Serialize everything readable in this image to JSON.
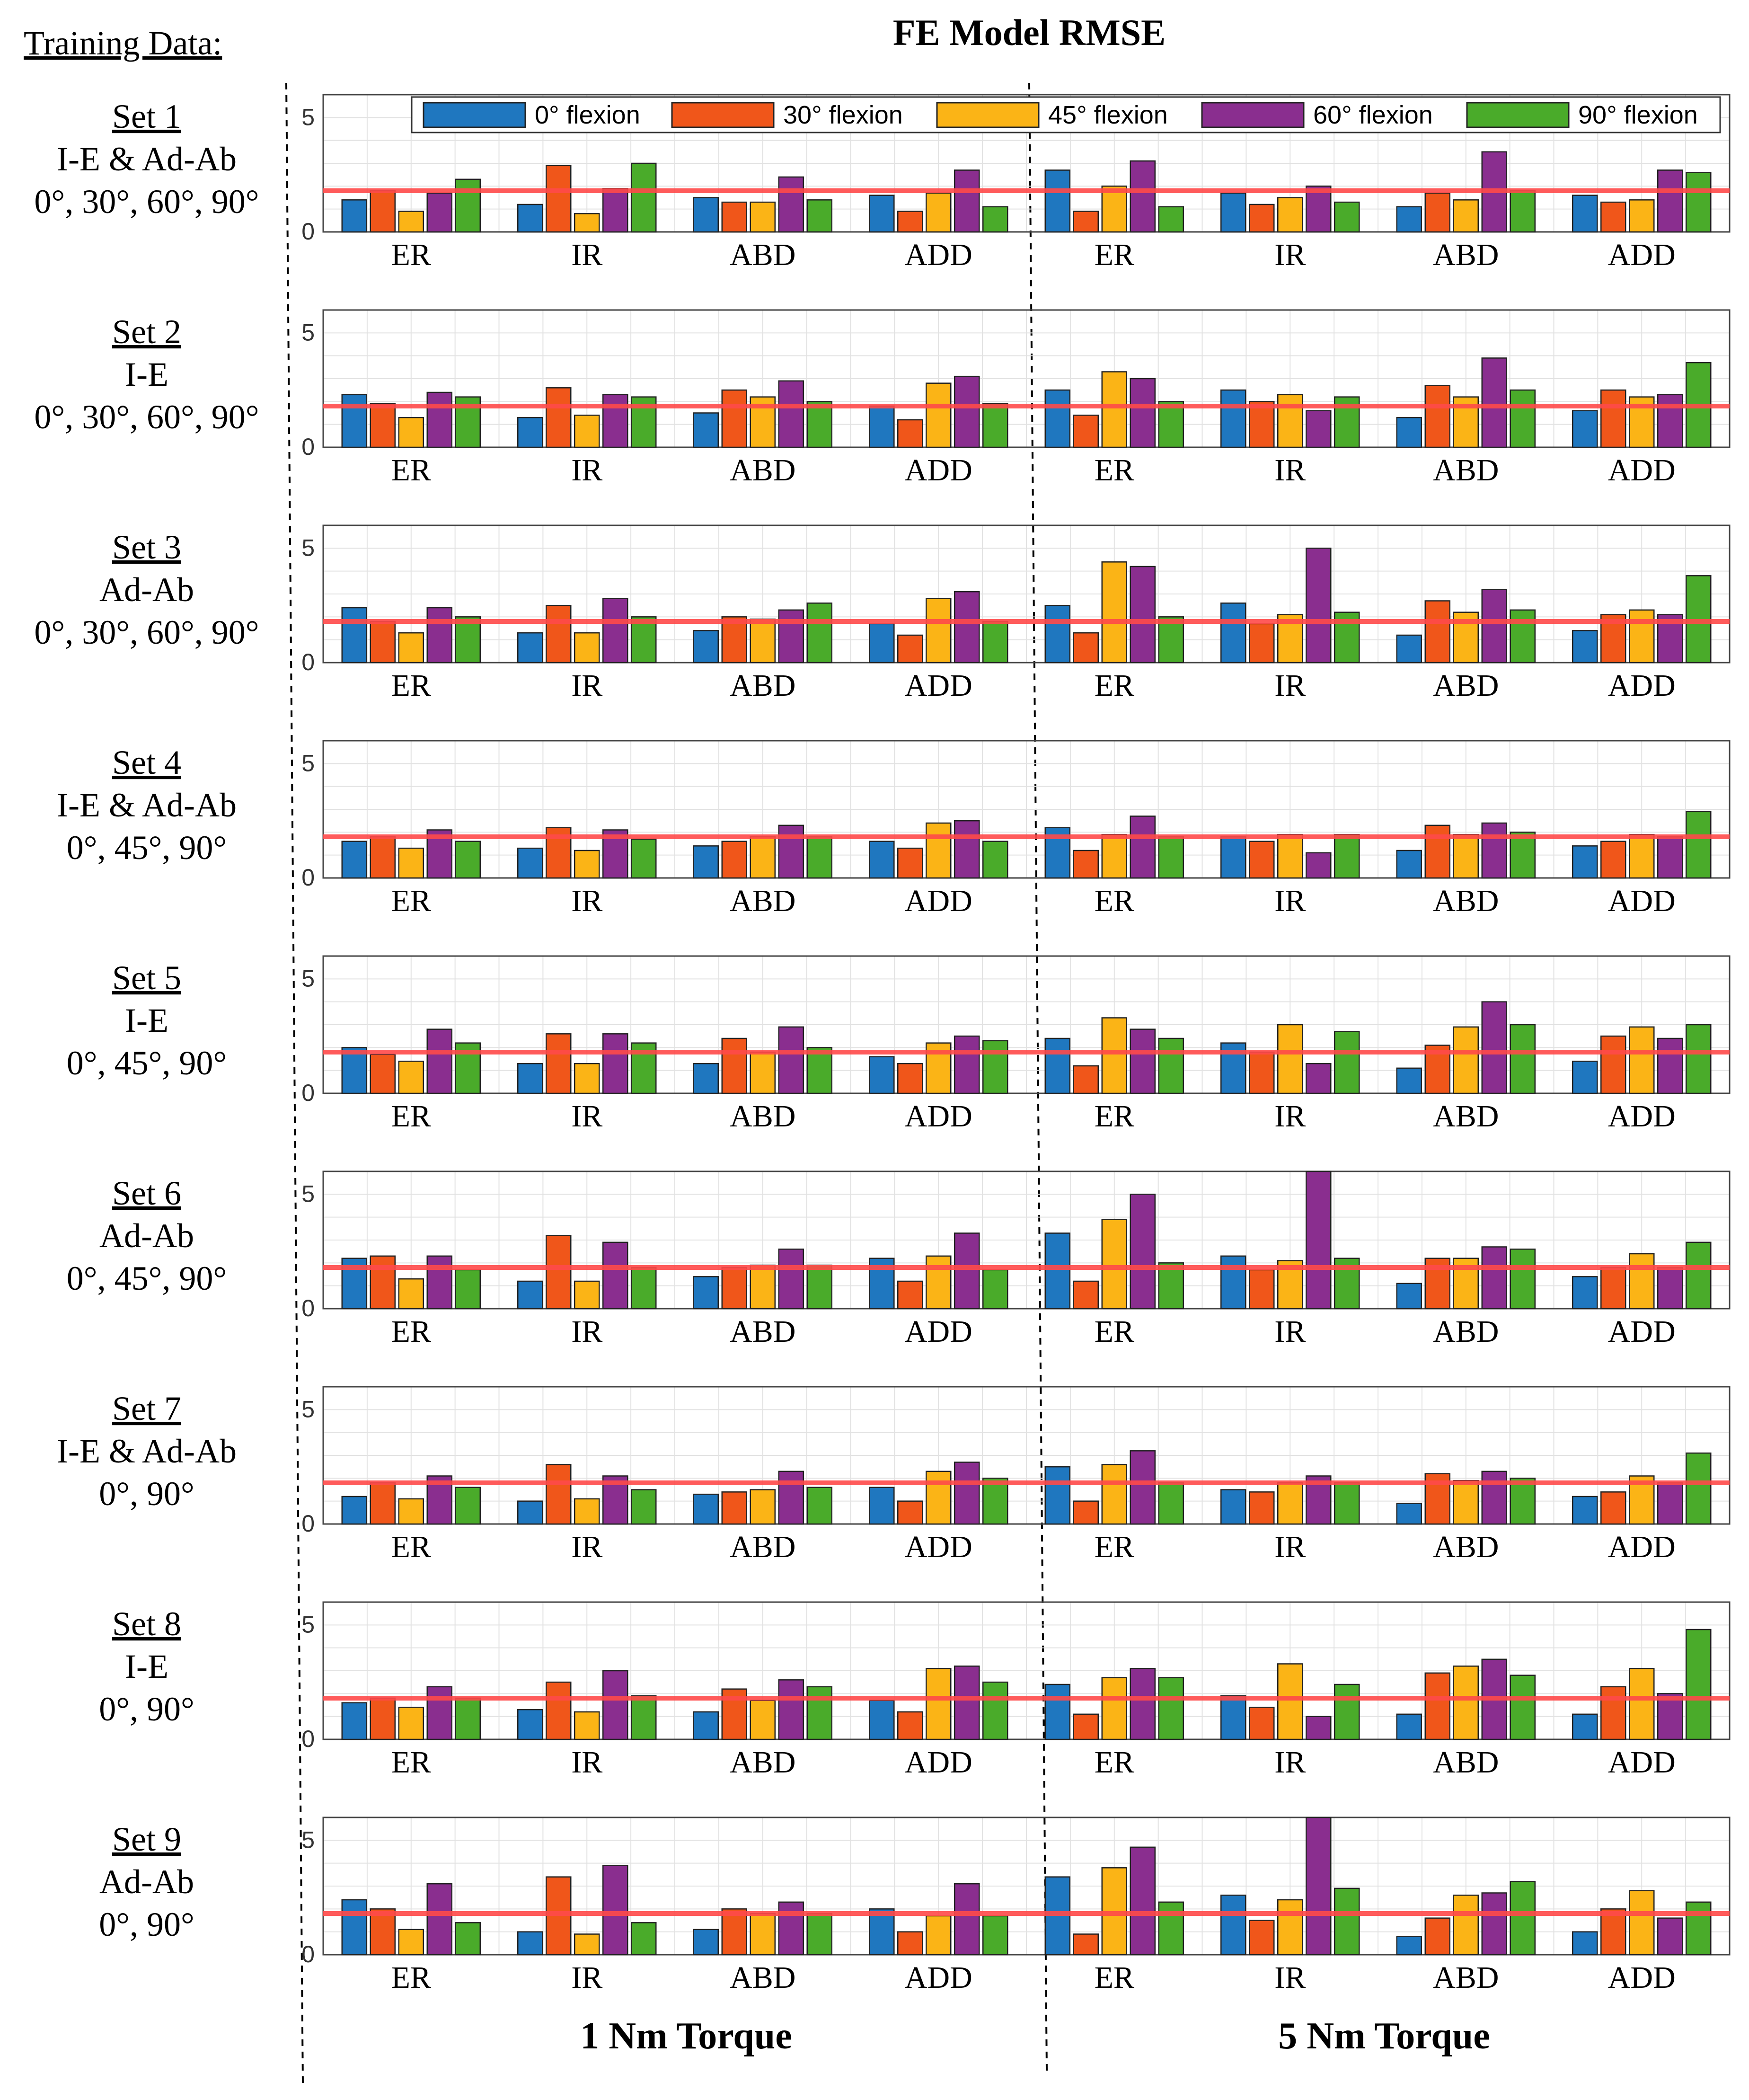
{
  "figure": {
    "title": "FE Model RMSE",
    "training_header": "Training Data:",
    "torque_labels": [
      "1 Nm Torque",
      "5 Nm Torque"
    ],
    "legend": [
      {
        "label": "0° flexion",
        "color": "#1f77bf"
      },
      {
        "label": "30° flexion",
        "color": "#f0561a"
      },
      {
        "label": "45° flexion",
        "color": "#fbb416"
      },
      {
        "label": "60° flexion",
        "color": "#8a2e8f"
      },
      {
        "label": "90° flexion",
        "color": "#4aab2a"
      }
    ],
    "reference_line": {
      "value": 1.8,
      "color": "#ff4a4a"
    },
    "y_ticks": [
      0,
      5
    ],
    "ylim": [
      0,
      6
    ]
  },
  "chart_data": {
    "type": "bar",
    "title": "FE Model RMSE",
    "categories": [
      "ER",
      "IR",
      "ABD",
      "ADD",
      "ER",
      "IR",
      "ABD",
      "ADD"
    ],
    "groups": [
      "1 Nm Torque",
      "1 Nm Torque",
      "1 Nm Torque",
      "1 Nm Torque",
      "5 Nm Torque",
      "5 Nm Torque",
      "5 Nm Torque",
      "5 Nm Torque"
    ],
    "series_names": [
      "0° flexion",
      "30° flexion",
      "45° flexion",
      "60° flexion",
      "90° flexion"
    ],
    "ylim": [
      0,
      6
    ],
    "reference_value": 1.8,
    "grid": true,
    "legend_position": "top-right",
    "panels": [
      {
        "label": {
          "set": "Set 1",
          "type": "I-E & Ad-Ab",
          "angles": "0°, 30°, 60°, 90°"
        },
        "values": [
          [
            1.4,
            1.8,
            0.9,
            1.7,
            2.3
          ],
          [
            1.2,
            2.9,
            0.8,
            1.9,
            3.0
          ],
          [
            1.5,
            1.3,
            1.3,
            2.4,
            1.4
          ],
          [
            1.6,
            0.9,
            1.7,
            2.7,
            1.1
          ],
          [
            2.7,
            0.9,
            2.0,
            3.1,
            1.1
          ],
          [
            1.7,
            1.2,
            1.5,
            2.0,
            1.3
          ],
          [
            1.1,
            1.7,
            1.4,
            3.5,
            1.8
          ],
          [
            1.6,
            1.3,
            1.4,
            2.7,
            2.6
          ]
        ]
      },
      {
        "label": {
          "set": "Set 2",
          "type": "I-E",
          "angles": "0°, 30°, 60°, 90°"
        },
        "values": [
          [
            2.3,
            1.9,
            1.3,
            2.4,
            2.2
          ],
          [
            1.3,
            2.6,
            1.4,
            2.3,
            2.2
          ],
          [
            1.5,
            2.5,
            2.2,
            2.9,
            2.0
          ],
          [
            1.8,
            1.2,
            2.8,
            3.1,
            1.9
          ],
          [
            2.5,
            1.4,
            3.3,
            3.0,
            2.0
          ],
          [
            2.5,
            2.0,
            2.3,
            1.6,
            2.2
          ],
          [
            1.3,
            2.7,
            2.2,
            3.9,
            2.5
          ],
          [
            1.6,
            2.5,
            2.2,
            2.3,
            3.7
          ]
        ]
      },
      {
        "label": {
          "set": "Set 3",
          "type": "Ad-Ab",
          "angles": "0°, 30°, 60°, 90°"
        },
        "values": [
          [
            2.4,
            1.8,
            1.3,
            2.4,
            2.0
          ],
          [
            1.3,
            2.5,
            1.3,
            2.8,
            2.0
          ],
          [
            1.4,
            2.0,
            1.9,
            2.3,
            2.6
          ],
          [
            1.7,
            1.2,
            2.8,
            3.1,
            1.8
          ],
          [
            2.5,
            1.3,
            4.4,
            4.2,
            2.0
          ],
          [
            2.6,
            1.7,
            2.1,
            5.0,
            2.2
          ],
          [
            1.2,
            2.7,
            2.2,
            3.2,
            2.3
          ],
          [
            1.4,
            2.1,
            2.3,
            2.1,
            3.8
          ]
        ]
      },
      {
        "label": {
          "set": "Set 4",
          "type": "I-E & Ad-Ab",
          "angles": "0°, 45°, 90°"
        },
        "values": [
          [
            1.6,
            1.8,
            1.3,
            2.1,
            1.6
          ],
          [
            1.3,
            2.2,
            1.2,
            2.1,
            1.7
          ],
          [
            1.4,
            1.6,
            1.8,
            2.3,
            1.8
          ],
          [
            1.6,
            1.3,
            2.4,
            2.5,
            1.6
          ],
          [
            2.2,
            1.2,
            1.9,
            2.7,
            1.8
          ],
          [
            1.8,
            1.6,
            1.9,
            1.1,
            1.9
          ],
          [
            1.2,
            2.3,
            1.9,
            2.4,
            2.0
          ],
          [
            1.4,
            1.6,
            1.9,
            1.8,
            2.9
          ]
        ]
      },
      {
        "label": {
          "set": "Set 5",
          "type": "I-E",
          "angles": "0°, 45°, 90°"
        },
        "values": [
          [
            2.0,
            1.7,
            1.4,
            2.8,
            2.2
          ],
          [
            1.3,
            2.6,
            1.3,
            2.6,
            2.2
          ],
          [
            1.3,
            2.4,
            1.8,
            2.9,
            2.0
          ],
          [
            1.6,
            1.3,
            2.2,
            2.5,
            2.3
          ],
          [
            2.4,
            1.2,
            3.3,
            2.8,
            2.4
          ],
          [
            2.2,
            1.8,
            3.0,
            1.3,
            2.7
          ],
          [
            1.1,
            2.1,
            2.9,
            4.0,
            3.0
          ],
          [
            1.4,
            2.5,
            2.9,
            2.4,
            3.0
          ]
        ]
      },
      {
        "label": {
          "set": "Set 6",
          "type": "Ad-Ab",
          "angles": "0°, 45°, 90°"
        },
        "values": [
          [
            2.2,
            2.3,
            1.3,
            2.3,
            1.7
          ],
          [
            1.2,
            3.2,
            1.2,
            2.9,
            1.8
          ],
          [
            1.4,
            1.8,
            1.9,
            2.6,
            1.9
          ],
          [
            2.2,
            1.2,
            2.3,
            3.3,
            1.7
          ],
          [
            3.3,
            1.2,
            3.9,
            5.0,
            2.0
          ],
          [
            2.3,
            1.7,
            2.1,
            6.0,
            2.2
          ],
          [
            1.1,
            2.2,
            2.2,
            2.7,
            2.6
          ],
          [
            1.4,
            1.8,
            2.4,
            1.8,
            2.9
          ]
        ]
      },
      {
        "label": {
          "set": "Set 7",
          "type": "I-E & Ad-Ab",
          "angles": "0°, 90°"
        },
        "values": [
          [
            1.2,
            1.8,
            1.1,
            2.1,
            1.6
          ],
          [
            1.0,
            2.6,
            1.1,
            2.1,
            1.5
          ],
          [
            1.3,
            1.4,
            1.5,
            2.3,
            1.6
          ],
          [
            1.6,
            1.0,
            2.3,
            2.7,
            2.0
          ],
          [
            2.5,
            1.0,
            2.6,
            3.2,
            1.8
          ],
          [
            1.5,
            1.4,
            1.8,
            2.1,
            1.8
          ],
          [
            0.9,
            2.2,
            1.9,
            2.3,
            2.0
          ],
          [
            1.2,
            1.4,
            2.1,
            1.8,
            3.1
          ]
        ]
      },
      {
        "label": {
          "set": "Set 8",
          "type": "I-E",
          "angles": "0°, 90°"
        },
        "values": [
          [
            1.6,
            1.8,
            1.4,
            2.3,
            1.8
          ],
          [
            1.3,
            2.5,
            1.2,
            3.0,
            1.9
          ],
          [
            1.2,
            2.2,
            1.7,
            2.6,
            2.3
          ],
          [
            1.7,
            1.2,
            3.1,
            3.2,
            2.5
          ],
          [
            2.4,
            1.1,
            2.7,
            3.1,
            2.7
          ],
          [
            1.9,
            1.4,
            3.3,
            1.0,
            2.4
          ],
          [
            1.1,
            2.9,
            3.2,
            3.5,
            2.8
          ],
          [
            1.1,
            2.3,
            3.1,
            2.0,
            4.8
          ]
        ]
      },
      {
        "label": {
          "set": "Set 9",
          "type": "Ad-Ab",
          "angles": "0°, 90°"
        },
        "values": [
          [
            2.4,
            2.0,
            1.1,
            3.1,
            1.4
          ],
          [
            1.0,
            3.4,
            0.9,
            3.9,
            1.4
          ],
          [
            1.1,
            2.0,
            1.8,
            2.3,
            1.8
          ],
          [
            2.0,
            1.0,
            1.7,
            3.1,
            1.7
          ],
          [
            3.4,
            0.9,
            3.8,
            4.7,
            2.3
          ],
          [
            2.6,
            1.5,
            2.4,
            6.0,
            2.9
          ],
          [
            0.8,
            1.6,
            2.6,
            2.7,
            3.2
          ],
          [
            1.0,
            2.0,
            2.8,
            1.6,
            2.3
          ]
        ]
      }
    ]
  }
}
